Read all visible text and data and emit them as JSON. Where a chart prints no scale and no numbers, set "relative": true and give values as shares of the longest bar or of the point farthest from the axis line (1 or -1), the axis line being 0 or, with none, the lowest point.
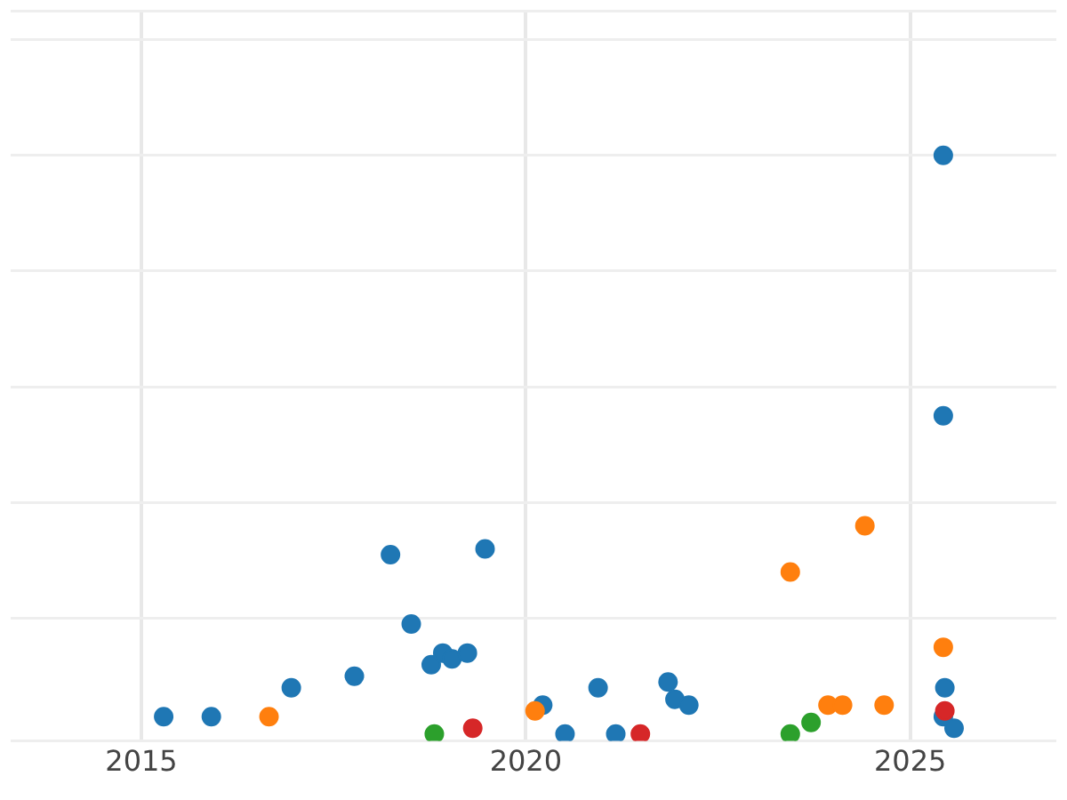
{
  "chart_data": {
    "type": "scatter",
    "relative": true,
    "xlim": [
      2013.3,
      2026.9
    ],
    "xticks": [
      2015,
      2020,
      2025
    ],
    "grid": true,
    "legend": false,
    "marker": "circle",
    "series": [
      {
        "color": "#1f77b4",
        "x": [
          2015.29,
          2015.91,
          2016.95,
          2017.77,
          2018.24,
          2018.51,
          2018.77,
          2018.92,
          2019.04,
          2019.24,
          2019.47,
          2020.22,
          2020.51,
          2020.94,
          2021.17,
          2021.85,
          2021.94,
          2022.12,
          2025.43,
          2025.43,
          2025.45,
          2025.43,
          2025.57
        ],
        "values": [
          0.03,
          0.03,
          0.08,
          0.1,
          0.31,
          0.19,
          0.12,
          0.14,
          0.13,
          0.14,
          0.32,
          0.05,
          0.0,
          0.08,
          0.0,
          0.09,
          0.06,
          0.05,
          1,
          0.55,
          0.08,
          0.03,
          0.01
        ]
      },
      {
        "color": "#ff7f0e",
        "x": [
          2016.66,
          2020.12,
          2023.44,
          2023.93,
          2024.12,
          2024.41,
          2024.66,
          2025.43
        ],
        "values": [
          0.03,
          0.04,
          0.28,
          0.05,
          0.05,
          0.36,
          0.05,
          0.15
        ]
      },
      {
        "color": "#2ca02c",
        "x": [
          2018.81,
          2023.44,
          2023.71
        ],
        "values": [
          0.0,
          0.0,
          0.02
        ]
      },
      {
        "color": "#d62728",
        "x": [
          2019.31,
          2021.49,
          2025.45
        ],
        "values": [
          0.01,
          0.0,
          0.04
        ]
      }
    ]
  }
}
